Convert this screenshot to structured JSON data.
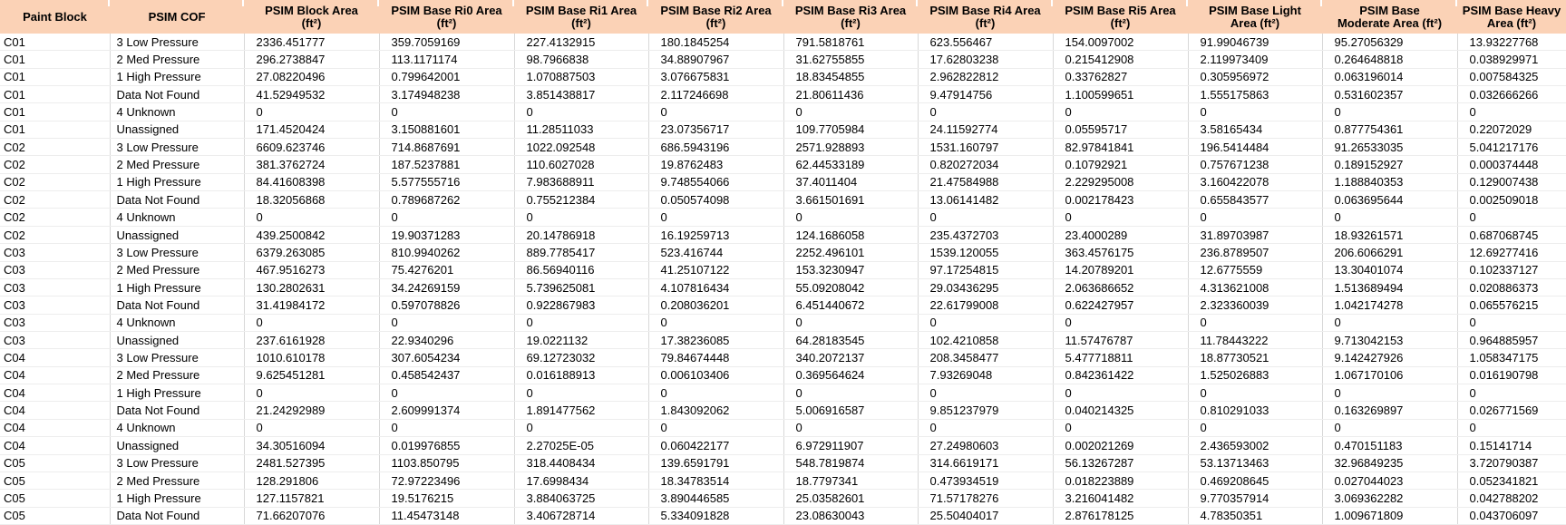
{
  "colors": {
    "header_bg": "#FBD2B6",
    "grid_vertical": "#D8D8D8",
    "grid_horizontal": "#EDEDED",
    "text": "#000000",
    "body_bg": "#FFFFFF"
  },
  "table": {
    "columns": [
      {
        "id": "paint-block",
        "line1": "Paint Block",
        "line2": ""
      },
      {
        "id": "psim-cof",
        "line1": "PSIM COF",
        "line2": ""
      },
      {
        "id": "block-area",
        "line1": "PSIM Block Area",
        "line2": "(ft²)"
      },
      {
        "id": "base-ri0-area",
        "line1": "PSIM Base Ri0 Area",
        "line2": "(ft²)"
      },
      {
        "id": "base-ri1-area",
        "line1": "PSIM Base Ri1 Area",
        "line2": "(ft²)"
      },
      {
        "id": "base-ri2-area",
        "line1": "PSIM Base Ri2 Area",
        "line2": "(ft²)"
      },
      {
        "id": "base-ri3-area",
        "line1": "PSIM Base Ri3 Area",
        "line2": "(ft²)"
      },
      {
        "id": "base-ri4-area",
        "line1": "PSIM Base Ri4 Area",
        "line2": "(ft²)"
      },
      {
        "id": "base-ri5-area",
        "line1": "PSIM Base Ri5 Area",
        "line2": "(ft²)"
      },
      {
        "id": "base-light-area",
        "line1": "PSIM Base Light",
        "line2": "Area (ft²)"
      },
      {
        "id": "base-moderate-area",
        "line1": "PSIM Base",
        "line2": "Moderate Area (ft²)"
      },
      {
        "id": "base-heavy-area",
        "line1": "PSIM Base Heavy",
        "line2": "Area (ft²)"
      }
    ],
    "rows": [
      [
        "C01",
        "3 Low Pressure",
        "2336.451777",
        "359.7059169",
        "227.4132915",
        "180.1845254",
        "791.5818761",
        "623.556467",
        "154.0097002",
        "91.99046739",
        "95.27056329",
        "13.93227768"
      ],
      [
        "C01",
        "2 Med Pressure",
        "296.2738847",
        "113.1171174",
        "98.7966838",
        "34.88907967",
        "31.62755855",
        "17.62803238",
        "0.215412908",
        "2.119973409",
        "0.264648818",
        "0.038929971"
      ],
      [
        "C01",
        "1 High Pressure",
        "27.08220496",
        "0.799642001",
        "1.070887503",
        "3.076675831",
        "18.83454855",
        "2.962822812",
        "0.33762827",
        "0.305956972",
        "0.063196014",
        "0.007584325"
      ],
      [
        "C01",
        "Data Not Found",
        "41.52949532",
        "3.174948238",
        "3.851438817",
        "2.117246698",
        "21.80611436",
        "9.47914756",
        "1.100599651",
        "1.555175863",
        "0.531602357",
        "0.032666266"
      ],
      [
        "C01",
        "4 Unknown",
        "0",
        "0",
        "0",
        "0",
        "0",
        "0",
        "0",
        "0",
        "0",
        "0"
      ],
      [
        "C01",
        "Unassigned",
        "171.4520424",
        "3.150881601",
        "11.28511033",
        "23.07356717",
        "109.7705984",
        "24.11592774",
        "0.05595717",
        "3.58165434",
        "0.877754361",
        "0.22072029"
      ],
      [
        "C02",
        "3 Low Pressure",
        "6609.623746",
        "714.8687691",
        "1022.092548",
        "686.5943196",
        "2571.928893",
        "1531.160797",
        "82.97841841",
        "196.5414484",
        "91.26533035",
        "5.041217176"
      ],
      [
        "C02",
        "2 Med Pressure",
        "381.3762724",
        "187.5237881",
        "110.6027028",
        "19.8762483",
        "62.44533189",
        "0.820272034",
        "0.10792921",
        "0.757671238",
        "0.189152927",
        "0.000374448"
      ],
      [
        "C02",
        "1 High Pressure",
        "84.41608398",
        "5.577555716",
        "7.983688911",
        "9.748554066",
        "37.4011404",
        "21.47584988",
        "2.229295008",
        "3.160422078",
        "1.188840353",
        "0.129007438"
      ],
      [
        "C02",
        "Data Not Found",
        "18.32056868",
        "0.789687262",
        "0.755212384",
        "0.050574098",
        "3.661501691",
        "13.06141482",
        "0.002178423",
        "0.655843577",
        "0.063695644",
        "0.002509018"
      ],
      [
        "C02",
        "4 Unknown",
        "0",
        "0",
        "0",
        "0",
        "0",
        "0",
        "0",
        "0",
        "0",
        "0"
      ],
      [
        "C02",
        "Unassigned",
        "439.2500842",
        "19.90371283",
        "20.14786918",
        "16.19259713",
        "124.1686058",
        "235.4372703",
        "23.4000289",
        "31.89703987",
        "18.93261571",
        "0.687068745"
      ],
      [
        "C03",
        "3 Low Pressure",
        "6379.263085",
        "810.9940262",
        "889.7785417",
        "523.416744",
        "2252.496101",
        "1539.120055",
        "363.4576175",
        "236.8789507",
        "206.6066291",
        "12.69277416"
      ],
      [
        "C03",
        "2 Med Pressure",
        "467.9516273",
        "75.4276201",
        "86.56940116",
        "41.25107122",
        "153.3230947",
        "97.17254815",
        "14.20789201",
        "12.6775559",
        "13.30401074",
        "0.102337127"
      ],
      [
        "C03",
        "1 High Pressure",
        "130.2802631",
        "34.24269159",
        "5.739625081",
        "4.107816434",
        "55.09208042",
        "29.03436295",
        "2.063686652",
        "4.313621008",
        "1.513689494",
        "0.020886373"
      ],
      [
        "C03",
        "Data Not Found",
        "31.41984172",
        "0.597078826",
        "0.922867983",
        "0.208036201",
        "6.451440672",
        "22.61799008",
        "0.622427957",
        "2.323360039",
        "1.042174278",
        "0.065576215"
      ],
      [
        "C03",
        "4 Unknown",
        "0",
        "0",
        "0",
        "0",
        "0",
        "0",
        "0",
        "0",
        "0",
        "0"
      ],
      [
        "C03",
        "Unassigned",
        "237.6161928",
        "22.9340296",
        "19.0221132",
        "17.38236085",
        "64.28183545",
        "102.4210858",
        "11.57476787",
        "11.78443222",
        "9.713042153",
        "0.964885957"
      ],
      [
        "C04",
        "3 Low Pressure",
        "1010.610178",
        "307.6054234",
        "69.12723032",
        "79.84674448",
        "340.2072137",
        "208.3458477",
        "5.477718811",
        "18.87730521",
        "9.142427926",
        "1.058347175"
      ],
      [
        "C04",
        "2 Med Pressure",
        "9.625451281",
        "0.458542437",
        "0.016188913",
        "0.006103406",
        "0.369564624",
        "7.93269048",
        "0.842361422",
        "1.525026883",
        "1.067170106",
        "0.016190798"
      ],
      [
        "C04",
        "1 High Pressure",
        "0",
        "0",
        "0",
        "0",
        "0",
        "0",
        "0",
        "0",
        "0",
        "0"
      ],
      [
        "C04",
        "Data Not Found",
        "21.24292989",
        "2.609991374",
        "1.891477562",
        "1.843092062",
        "5.006916587",
        "9.851237979",
        "0.040214325",
        "0.810291033",
        "0.163269897",
        "0.026771569"
      ],
      [
        "C04",
        "4 Unknown",
        "0",
        "0",
        "0",
        "0",
        "0",
        "0",
        "0",
        "0",
        "0",
        "0"
      ],
      [
        "C04",
        "Unassigned",
        "34.30516094",
        "0.019976855",
        "2.27025E-05",
        "0.060422177",
        "6.972911907",
        "27.24980603",
        "0.002021269",
        "2.436593002",
        "0.470151183",
        "0.15141714"
      ],
      [
        "C05",
        "3 Low Pressure",
        "2481.527395",
        "1103.850795",
        "318.4408434",
        "139.6591791",
        "548.7819874",
        "314.6619171",
        "56.13267287",
        "53.13713463",
        "32.96849235",
        "3.720790387"
      ],
      [
        "C05",
        "2 Med Pressure",
        "128.291806",
        "72.97223496",
        "17.6998434",
        "18.34783514",
        "18.7797341",
        "0.473934519",
        "0.018223889",
        "0.469208645",
        "0.027044023",
        "0.052341821"
      ],
      [
        "C05",
        "1 High Pressure",
        "127.1157821",
        "19.5176215",
        "3.884063725",
        "3.890446585",
        "25.03582601",
        "71.57178276",
        "3.216041482",
        "9.770357914",
        "3.069362282",
        "0.042788202"
      ],
      [
        "C05",
        "Data Not Found",
        "71.66207076",
        "11.45473148",
        "3.406728714",
        "5.334091828",
        "23.08630043",
        "25.50404017",
        "2.876178125",
        "4.78350351",
        "1.009671809",
        "0.043706097"
      ]
    ]
  }
}
